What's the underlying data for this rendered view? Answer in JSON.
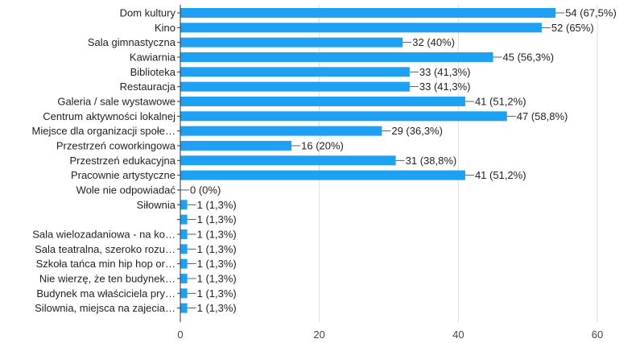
{
  "chart_data": {
    "type": "bar",
    "orientation": "horizontal",
    "categories": [
      "Dom kultury",
      "Kino",
      "Sala gimnastyczna",
      "Kawiarnia",
      "Biblioteka",
      "Restauracja",
      "Galeria / sale wystawowe",
      "Centrum aktywności lokalnej",
      "Miejsce dla organizacji społe…",
      "Przestrzeń coworkingowa",
      "Przestrzeń edukacyjna",
      "Pracownie artystyczne",
      "Wole nie odpowiadać",
      "Siłownia",
      "",
      "Sala wielozadaniowa - na ko…",
      "Sala teatralna, szeroko rozu…",
      "Szkoła tańca min hip hop or…",
      "Nie wierzę, że ten budynek…",
      "Budynek ma właściciela pry…",
      "Silownia, miejsca na zajecia…"
    ],
    "values": [
      54,
      52,
      32,
      45,
      33,
      33,
      41,
      47,
      29,
      16,
      31,
      41,
      0,
      1,
      1,
      1,
      1,
      1,
      1,
      1,
      1
    ],
    "value_labels": [
      "54 (67,5%)",
      "52 (65%)",
      "32 (40%)",
      "45 (56,3%)",
      "33 (41,3%)",
      "33 (41,3%)",
      "41 (51,2%)",
      "47 (58,8%)",
      "29 (36,3%)",
      "16 (20%)",
      "31 (38,8%)",
      "41 (51,2%)",
      "0 (0%)",
      "1 (1,3%)",
      "1 (1,3%)",
      "1 (1,3%)",
      "1 (1,3%)",
      "1 (1,3%)",
      "1 (1,3%)",
      "1 (1,3%)",
      "1 (1,3%)"
    ],
    "xlim": [
      0,
      60
    ],
    "xticks": [
      "0",
      "20",
      "40",
      "60"
    ],
    "grid": true,
    "bar_color": "#1ea1f2",
    "grid_color": "#dddddd",
    "title": "",
    "xlabel": "",
    "ylabel": ""
  }
}
